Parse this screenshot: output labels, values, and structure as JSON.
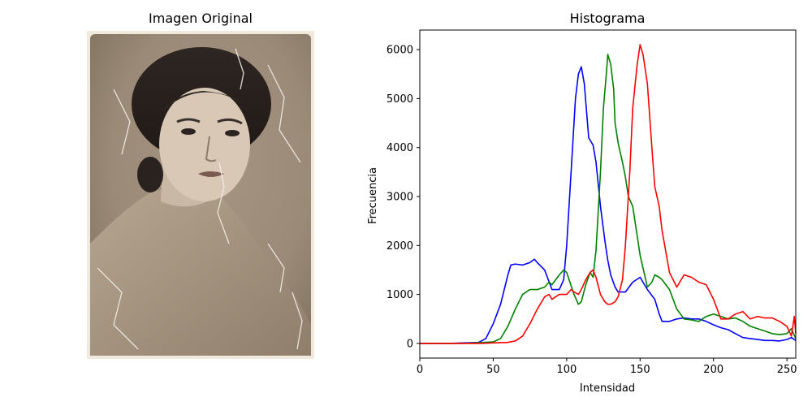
{
  "figure": {
    "left_title": "Imagen Original",
    "right_title": "Histograma"
  },
  "chart_data": {
    "type": "line",
    "title": "Histograma",
    "xlabel": "Intensidad",
    "ylabel": "Frecuencia",
    "xlim": [
      0,
      256
    ],
    "ylim": [
      -300,
      6400
    ],
    "x_ticks": [
      0,
      50,
      100,
      150,
      200,
      250
    ],
    "y_ticks": [
      0,
      1000,
      2000,
      3000,
      4000,
      5000,
      6000
    ],
    "grid": false,
    "legend": "none",
    "series": [
      {
        "color": "#0000ff",
        "x": [
          0,
          20,
          40,
          45,
          50,
          55,
          60,
          62,
          65,
          70,
          75,
          78,
          80,
          85,
          90,
          95,
          98,
          100,
          103,
          106,
          108,
          110,
          112,
          115,
          118,
          120,
          123,
          126,
          128,
          130,
          133,
          135,
          137,
          140,
          145,
          150,
          155,
          160,
          163,
          165,
          170,
          175,
          180,
          185,
          190,
          195,
          200,
          205,
          210,
          215,
          220,
          225,
          230,
          235,
          240,
          245,
          250,
          253,
          256
        ],
        "y": [
          0,
          0,
          20,
          100,
          400,
          800,
          1400,
          1600,
          1620,
          1600,
          1650,
          1720,
          1650,
          1500,
          1100,
          1100,
          1300,
          2000,
          3500,
          5000,
          5500,
          5650,
          5300,
          4200,
          4050,
          3700,
          2800,
          2100,
          1700,
          1400,
          1150,
          1050,
          1050,
          1050,
          1250,
          1350,
          1100,
          900,
          600,
          450,
          450,
          500,
          520,
          500,
          500,
          450,
          380,
          320,
          280,
          200,
          120,
          100,
          80,
          60,
          60,
          50,
          80,
          120,
          60
        ]
      },
      {
        "color": "#008000",
        "x": [
          0,
          30,
          50,
          55,
          60,
          65,
          70,
          75,
          80,
          85,
          88,
          90,
          95,
          98,
          100,
          105,
          108,
          110,
          113,
          116,
          118,
          120,
          123,
          125,
          127,
          128,
          130,
          132,
          133,
          135,
          138,
          140,
          142,
          145,
          148,
          150,
          155,
          158,
          160,
          163,
          165,
          170,
          175,
          180,
          185,
          190,
          195,
          200,
          205,
          210,
          215,
          220,
          225,
          230,
          235,
          240,
          245,
          250,
          253,
          256
        ],
        "y": [
          0,
          0,
          30,
          100,
          350,
          700,
          1000,
          1100,
          1100,
          1150,
          1250,
          1200,
          1400,
          1500,
          1450,
          1000,
          800,
          850,
          1200,
          1450,
          1350,
          1900,
          3500,
          4800,
          5500,
          5900,
          5700,
          5200,
          4500,
          4100,
          3700,
          3400,
          3000,
          2800,
          2200,
          1800,
          1150,
          1250,
          1400,
          1350,
          1300,
          1100,
          700,
          500,
          480,
          450,
          550,
          600,
          550,
          500,
          520,
          450,
          350,
          300,
          250,
          200,
          180,
          200,
          300,
          100
        ]
      },
      {
        "color": "#ff0000",
        "x": [
          0,
          40,
          60,
          65,
          70,
          75,
          80,
          85,
          88,
          90,
          95,
          100,
          103,
          105,
          108,
          110,
          113,
          116,
          118,
          120,
          123,
          126,
          128,
          130,
          133,
          135,
          138,
          140,
          143,
          145,
          148,
          150,
          152,
          155,
          158,
          160,
          163,
          165,
          170,
          175,
          180,
          185,
          190,
          195,
          200,
          205,
          210,
          215,
          220,
          225,
          230,
          235,
          240,
          245,
          250,
          253,
          255,
          256
        ],
        "y": [
          0,
          0,
          20,
          50,
          150,
          400,
          700,
          950,
          1000,
          900,
          1000,
          1000,
          1100,
          1050,
          1000,
          1100,
          1300,
          1450,
          1500,
          1350,
          1000,
          850,
          800,
          800,
          850,
          950,
          1300,
          2000,
          3500,
          4800,
          5700,
          6100,
          5900,
          5300,
          4000,
          3200,
          2800,
          2300,
          1450,
          1150,
          1400,
          1350,
          1250,
          1200,
          900,
          500,
          500,
          600,
          650,
          500,
          550,
          520,
          520,
          450,
          350,
          150,
          550,
          200
        ]
      }
    ]
  }
}
